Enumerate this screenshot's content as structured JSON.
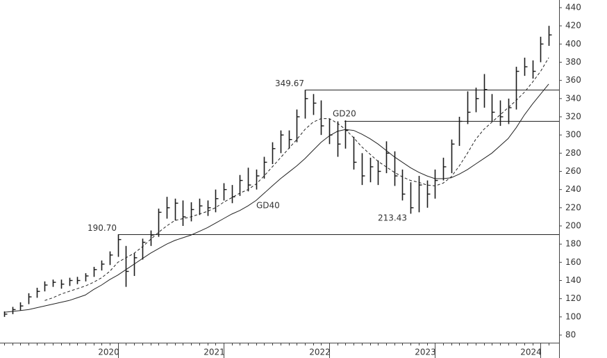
{
  "chart_data": {
    "type": "ohlc",
    "categories": [
      null,
      null,
      null,
      null,
      null,
      null,
      null,
      null,
      null,
      null,
      null,
      null,
      null,
      null,
      "2020",
      null,
      null,
      null,
      null,
      null,
      null,
      null,
      null,
      null,
      null,
      null,
      null,
      "2021",
      null,
      null,
      null,
      null,
      null,
      null,
      null,
      null,
      null,
      null,
      null,
      null,
      "2022",
      null,
      null,
      null,
      null,
      null,
      null,
      null,
      null,
      null,
      null,
      null,
      null,
      "2023",
      null,
      null,
      null,
      null,
      null,
      null,
      null,
      null,
      null,
      null,
      null,
      null,
      "2024",
      null
    ],
    "ohlc": {
      "high": [
        106,
        111,
        116,
        126,
        132,
        139,
        141,
        141,
        143,
        144,
        148,
        155,
        162,
        172,
        190.7,
        178,
        170,
        186,
        195,
        219,
        232,
        230,
        228,
        226,
        230,
        228,
        240,
        247,
        245,
        256,
        264,
        262,
        276,
        292,
        305,
        305,
        328,
        349.67,
        345,
        338,
        318,
        315,
        316,
        298,
        280,
        275,
        272,
        293,
        282,
        262,
        248,
        255,
        250,
        262,
        275,
        295,
        320,
        348,
        352,
        367,
        345,
        338,
        340,
        375,
        385,
        382,
        408,
        420
      ],
      "low": [
        100,
        103,
        107,
        114,
        121,
        128,
        133,
        131,
        134,
        136,
        139,
        144,
        151,
        157,
        166,
        133,
        145,
        163,
        178,
        188,
        208,
        206,
        200,
        205,
        212,
        211,
        215,
        228,
        225,
        233,
        238,
        240,
        252,
        268,
        280,
        285,
        292,
        318,
        322,
        300,
        290,
        276,
        285,
        262,
        245,
        248,
        245,
        258,
        244,
        228,
        213.43,
        215,
        220,
        230,
        250,
        258,
        288,
        312,
        325,
        330,
        315,
        310,
        312,
        328,
        365,
        362,
        380,
        398
      ],
      "close": [
        103,
        108,
        112,
        122,
        128,
        135,
        138,
        136,
        140,
        140,
        145,
        152,
        158,
        168,
        185,
        150,
        165,
        182,
        190,
        215,
        220,
        225,
        210,
        218,
        222,
        220,
        230,
        240,
        232,
        250,
        245,
        255,
        270,
        285,
        300,
        295,
        320,
        340,
        335,
        310,
        300,
        290,
        305,
        270,
        255,
        265,
        260,
        280,
        255,
        235,
        220,
        245,
        235,
        250,
        265,
        290,
        315,
        325,
        340,
        350,
        325,
        320,
        330,
        370,
        375,
        370,
        400,
        410
      ]
    },
    "series": [
      {
        "name": "GD20",
        "color": "#222222",
        "dashed": true,
        "values": [
          null,
          null,
          null,
          null,
          null,
          118,
          121,
          125,
          128,
          131,
          134,
          138,
          143,
          150,
          160,
          165,
          170,
          177,
          185,
          193,
          200,
          206,
          208,
          210,
          213,
          216,
          220,
          226,
          231,
          236,
          240,
          246,
          255,
          265,
          275,
          285,
          295,
          306,
          314,
          318,
          318,
          313,
          306,
          297,
          287,
          279,
          271,
          265,
          259,
          254,
          250,
          248,
          245,
          244,
          247,
          254,
          266,
          280,
          295,
          306,
          314,
          322,
          330,
          338,
          347,
          358,
          370,
          385
        ]
      },
      {
        "name": "GD40",
        "color": "#222222",
        "dashed": false,
        "values": [
          105,
          106,
          107,
          108,
          110,
          112,
          114,
          116,
          118,
          121,
          124,
          130,
          135,
          141,
          146,
          152,
          158,
          164,
          170,
          175,
          180,
          184,
          187,
          190,
          194,
          198,
          203,
          208,
          213,
          217,
          222,
          228,
          236,
          244,
          252,
          259,
          266,
          274,
          283,
          292,
          299,
          304,
          306,
          305,
          301,
          296,
          290,
          283,
          276,
          270,
          264,
          259,
          255,
          252,
          252,
          253,
          257,
          262,
          268,
          274,
          280,
          288,
          296,
          308,
          322,
          334,
          345,
          356
        ]
      }
    ],
    "levels": [
      {
        "value": 190.7,
        "label": "190.70"
      },
      {
        "value": 349.67,
        "label": "349.67"
      },
      {
        "value": 315.4
      }
    ],
    "annotations": [
      {
        "value": 213.43,
        "label": "213.43"
      }
    ],
    "ylim": [
      71.6,
      448.4
    ],
    "yticks": [
      80,
      100,
      120,
      140,
      160,
      180,
      200,
      220,
      240,
      260,
      280,
      300,
      320,
      340,
      360,
      380,
      400,
      420,
      440
    ],
    "bar_color": "#1a1a1a"
  }
}
